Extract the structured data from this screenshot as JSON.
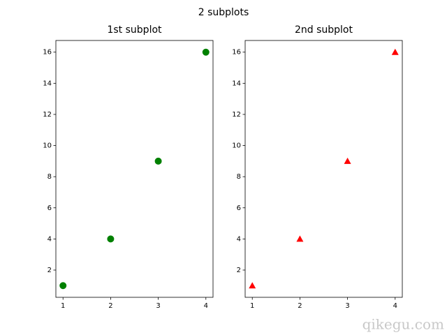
{
  "title": "2 subplots",
  "watermark": "qikegu.com",
  "chart_data": [
    {
      "type": "scatter",
      "title": "1st subplot",
      "x": [
        1,
        2,
        3,
        4
      ],
      "values": [
        1,
        4,
        9,
        16
      ],
      "color": "#008000",
      "marker": "circle",
      "xlim": [
        0.85,
        4.15
      ],
      "ylim": [
        0.25,
        16.75
      ],
      "xticks": [
        1,
        2,
        3,
        4
      ],
      "yticks": [
        2,
        4,
        6,
        8,
        10,
        12,
        14,
        16
      ]
    },
    {
      "type": "scatter",
      "title": "2nd subplot",
      "x": [
        1,
        2,
        3,
        4
      ],
      "values": [
        1,
        4,
        9,
        16
      ],
      "color": "#ff0000",
      "marker": "triangle",
      "xlim": [
        0.85,
        4.15
      ],
      "ylim": [
        0.25,
        16.75
      ],
      "xticks": [
        1,
        2,
        3,
        4
      ],
      "yticks": [
        2,
        4,
        6,
        8,
        10,
        12,
        14,
        16
      ]
    }
  ]
}
